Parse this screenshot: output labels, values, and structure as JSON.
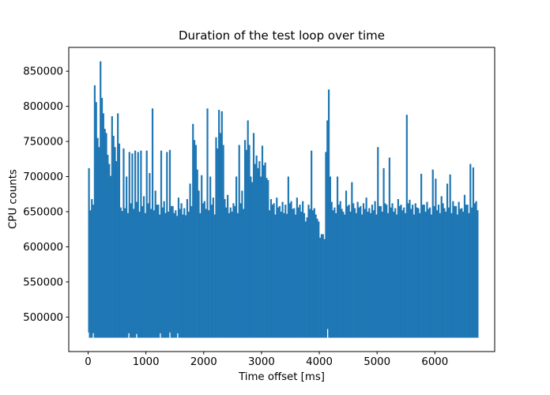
{
  "figure": {
    "title": "Duration of the test loop over time",
    "xlabel": "Time offset [ms]",
    "ylabel": "CPU counts",
    "background_color": "#ffffff",
    "series_color": "#1f77b4"
  },
  "chart_data": {
    "type": "line",
    "title": "Duration of the test loop over time",
    "xlabel": "Time offset [ms]",
    "ylabel": "CPU counts",
    "grid": false,
    "legend": null,
    "series_color": "#1f77b4",
    "xticks": [
      0,
      1000,
      2000,
      3000,
      4000,
      5000,
      6000
    ],
    "yticks": [
      500000,
      550000,
      600000,
      650000,
      700000,
      750000,
      800000,
      850000
    ],
    "xlim": [
      -335,
      7035
    ],
    "ylim": [
      450900,
      883900
    ],
    "representation": "max-envelope of noisy signal per 25 ms bin",
    "bin_ms": 25,
    "x_start_ms": 0,
    "y_min_base": 470600,
    "y_max_envelope": [
      712000,
      652000,
      668000,
      660000,
      830000,
      806000,
      755000,
      742000,
      864000,
      812000,
      790000,
      768000,
      762000,
      731000,
      718000,
      701000,
      786000,
      758000,
      742000,
      722000,
      790000,
      747000,
      656000,
      651000,
      740000,
      655000,
      700000,
      648000,
      735000,
      662000,
      733000,
      654000,
      737000,
      664000,
      735000,
      650000,
      737000,
      658000,
      672000,
      648000,
      737000,
      662000,
      705000,
      654000,
      797000,
      652000,
      680000,
      660000,
      660000,
      646000,
      737000,
      656000,
      665000,
      648000,
      735000,
      650000,
      738000,
      658000,
      658000,
      648000,
      652000,
      644000,
      670000,
      654000,
      662000,
      646000,
      655000,
      645000,
      668000,
      650000,
      690000,
      658000,
      775000,
      752000,
      745000,
      710000,
      680000,
      648000,
      702000,
      662000,
      665000,
      654000,
      797000,
      652000,
      700000,
      660000,
      670000,
      646000,
      756000,
      740000,
      795000,
      762000,
      793000,
      745000,
      668000,
      656000,
      674000,
      648000,
      656000,
      650000,
      662000,
      658000,
      700000,
      648000,
      745000,
      662000,
      680000,
      654000,
      752000,
      738000,
      780000,
      745000,
      700000,
      692000,
      762000,
      718000,
      730000,
      712000,
      722000,
      700000,
      744000,
      716000,
      720000,
      698000,
      695000,
      652000,
      668000,
      660000,
      662000,
      646000,
      670000,
      656000,
      658000,
      650000,
      664000,
      648000,
      660000,
      647000,
      700000,
      662000,
      665000,
      654000,
      655000,
      646000,
      670000,
      656000,
      660000,
      650000,
      665000,
      648000,
      636000,
      642000,
      660000,
      654000,
      737000,
      652000,
      655000,
      646000,
      640000,
      636000,
      613000,
      618000,
      618000,
      611000,
      735000,
      780000,
      824000,
      700000,
      664000,
      652000,
      656000,
      648000,
      700000,
      660000,
      665000,
      654000,
      650000,
      646000,
      680000,
      658000,
      660000,
      650000,
      692000,
      662000,
      655000,
      648000,
      664000,
      656000,
      658000,
      646000,
      662000,
      654000,
      670000,
      650000,
      655000,
      648000,
      660000,
      652000,
      665000,
      646000,
      742000,
      658000,
      658000,
      650000,
      712000,
      662000,
      660000,
      648000,
      727000,
      656000,
      662000,
      650000,
      655000,
      646000,
      668000,
      658000,
      660000,
      652000,
      656000,
      648000,
      788000,
      662000,
      667000,
      654000,
      660000,
      646000,
      662000,
      656000,
      655000,
      648000,
      704000,
      660000,
      660000,
      650000,
      664000,
      654000,
      656000,
      646000,
      710000,
      658000,
      697000,
      652000,
      660000,
      648000,
      672000,
      662000,
      655000,
      650000,
      690000,
      656000,
      703000,
      648000,
      665000,
      658000,
      658000,
      646000,
      664000,
      654000,
      655000,
      650000,
      674000,
      660000,
      660000,
      648000,
      718000,
      656000,
      713000,
      662000,
      665000,
      652000
    ],
    "min_notches": [
      {
        "x": 5,
        "y": 478000
      },
      {
        "x": 90,
        "y": 477000
      },
      {
        "x": 705,
        "y": 477000
      },
      {
        "x": 840,
        "y": 476000
      },
      {
        "x": 1250,
        "y": 477000
      },
      {
        "x": 1415,
        "y": 478000
      },
      {
        "x": 1550,
        "y": 477000
      },
      {
        "x": 4145,
        "y": 483000
      }
    ]
  }
}
